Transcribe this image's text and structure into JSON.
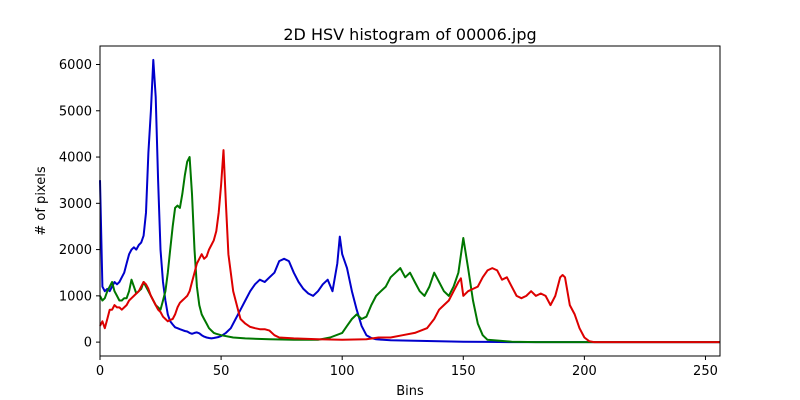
{
  "chart_data": {
    "type": "line",
    "title": "2D HSV histogram of 00006.jpg",
    "xlabel": "Bins",
    "ylabel": "# of pixels",
    "xlim": [
      0,
      256
    ],
    "ylim": [
      -300,
      6400
    ],
    "xticks": [
      0,
      50,
      100,
      150,
      200,
      250
    ],
    "yticks": [
      0,
      1000,
      2000,
      3000,
      4000,
      5000,
      6000
    ],
    "grid": false,
    "series": [
      {
        "color": "#0000cc",
        "points": [
          [
            0,
            3500
          ],
          [
            1,
            1200
          ],
          [
            2,
            1100
          ],
          [
            3,
            1150
          ],
          [
            4,
            1100
          ],
          [
            5,
            1200
          ],
          [
            6,
            1300
          ],
          [
            7,
            1250
          ],
          [
            8,
            1300
          ],
          [
            9,
            1400
          ],
          [
            10,
            1500
          ],
          [
            11,
            1700
          ],
          [
            12,
            1900
          ],
          [
            13,
            2000
          ],
          [
            14,
            2050
          ],
          [
            15,
            2000
          ],
          [
            16,
            2100
          ],
          [
            17,
            2150
          ],
          [
            18,
            2300
          ],
          [
            19,
            2800
          ],
          [
            20,
            4100
          ],
          [
            21,
            5000
          ],
          [
            22,
            6100
          ],
          [
            23,
            5300
          ],
          [
            24,
            3500
          ],
          [
            25,
            2000
          ],
          [
            26,
            1300
          ],
          [
            27,
            900
          ],
          [
            28,
            600
          ],
          [
            29,
            450
          ],
          [
            30,
            380
          ],
          [
            31,
            320
          ],
          [
            32,
            300
          ],
          [
            33,
            280
          ],
          [
            34,
            260
          ],
          [
            35,
            240
          ],
          [
            36,
            230
          ],
          [
            37,
            200
          ],
          [
            38,
            180
          ],
          [
            39,
            200
          ],
          [
            40,
            210
          ],
          [
            41,
            190
          ],
          [
            42,
            150
          ],
          [
            43,
            120
          ],
          [
            44,
            100
          ],
          [
            45,
            90
          ],
          [
            46,
            80
          ],
          [
            47,
            90
          ],
          [
            48,
            100
          ],
          [
            49,
            110
          ],
          [
            50,
            130
          ],
          [
            52,
            200
          ],
          [
            54,
            300
          ],
          [
            56,
            500
          ],
          [
            58,
            700
          ],
          [
            60,
            900
          ],
          [
            62,
            1100
          ],
          [
            64,
            1250
          ],
          [
            66,
            1350
          ],
          [
            68,
            1300
          ],
          [
            70,
            1400
          ],
          [
            72,
            1500
          ],
          [
            74,
            1750
          ],
          [
            76,
            1800
          ],
          [
            78,
            1750
          ],
          [
            80,
            1500
          ],
          [
            82,
            1300
          ],
          [
            84,
            1150
          ],
          [
            86,
            1050
          ],
          [
            88,
            1000
          ],
          [
            90,
            1100
          ],
          [
            92,
            1250
          ],
          [
            94,
            1350
          ],
          [
            96,
            1100
          ],
          [
            98,
            1700
          ],
          [
            99,
            2280
          ],
          [
            100,
            1900
          ],
          [
            102,
            1600
          ],
          [
            104,
            1100
          ],
          [
            106,
            700
          ],
          [
            108,
            350
          ],
          [
            110,
            150
          ],
          [
            112,
            90
          ],
          [
            114,
            60
          ],
          [
            120,
            40
          ],
          [
            130,
            30
          ],
          [
            140,
            20
          ],
          [
            150,
            10
          ],
          [
            160,
            5
          ],
          [
            170,
            0
          ],
          [
            200,
            0
          ],
          [
            256,
            0
          ]
        ]
      },
      {
        "color": "#007700",
        "points": [
          [
            0,
            1000
          ],
          [
            1,
            900
          ],
          [
            2,
            950
          ],
          [
            3,
            1100
          ],
          [
            4,
            1200
          ],
          [
            5,
            1300
          ],
          [
            6,
            1100
          ],
          [
            7,
            1000
          ],
          [
            8,
            900
          ],
          [
            9,
            900
          ],
          [
            10,
            950
          ],
          [
            11,
            950
          ],
          [
            12,
            1100
          ],
          [
            13,
            1350
          ],
          [
            14,
            1200
          ],
          [
            15,
            1050
          ],
          [
            16,
            1100
          ],
          [
            17,
            1150
          ],
          [
            18,
            1300
          ],
          [
            19,
            1200
          ],
          [
            20,
            1100
          ],
          [
            21,
            1000
          ],
          [
            22,
            900
          ],
          [
            23,
            800
          ],
          [
            24,
            750
          ],
          [
            25,
            700
          ],
          [
            26,
            900
          ],
          [
            27,
            1100
          ],
          [
            28,
            1500
          ],
          [
            29,
            2000
          ],
          [
            30,
            2500
          ],
          [
            31,
            2900
          ],
          [
            32,
            2950
          ],
          [
            33,
            2900
          ],
          [
            34,
            3200
          ],
          [
            35,
            3600
          ],
          [
            36,
            3900
          ],
          [
            37,
            4000
          ],
          [
            38,
            3200
          ],
          [
            39,
            2000
          ],
          [
            40,
            1200
          ],
          [
            41,
            800
          ],
          [
            42,
            600
          ],
          [
            43,
            500
          ],
          [
            44,
            400
          ],
          [
            45,
            300
          ],
          [
            46,
            250
          ],
          [
            47,
            200
          ],
          [
            48,
            180
          ],
          [
            50,
            150
          ],
          [
            55,
            100
          ],
          [
            60,
            80
          ],
          [
            70,
            60
          ],
          [
            80,
            50
          ],
          [
            90,
            50
          ],
          [
            95,
            100
          ],
          [
            100,
            200
          ],
          [
            102,
            350
          ],
          [
            104,
            500
          ],
          [
            106,
            600
          ],
          [
            108,
            500
          ],
          [
            110,
            550
          ],
          [
            112,
            800
          ],
          [
            114,
            1000
          ],
          [
            116,
            1100
          ],
          [
            118,
            1200
          ],
          [
            120,
            1400
          ],
          [
            122,
            1500
          ],
          [
            124,
            1600
          ],
          [
            126,
            1400
          ],
          [
            128,
            1500
          ],
          [
            130,
            1300
          ],
          [
            132,
            1100
          ],
          [
            134,
            1000
          ],
          [
            136,
            1200
          ],
          [
            138,
            1500
          ],
          [
            140,
            1300
          ],
          [
            142,
            1100
          ],
          [
            144,
            1000
          ],
          [
            146,
            1200
          ],
          [
            148,
            1500
          ],
          [
            150,
            2250
          ],
          [
            152,
            1600
          ],
          [
            154,
            900
          ],
          [
            156,
            400
          ],
          [
            158,
            150
          ],
          [
            160,
            50
          ],
          [
            170,
            10
          ],
          [
            180,
            0
          ],
          [
            200,
            0
          ],
          [
            256,
            0
          ]
        ]
      },
      {
        "color": "#dd0000",
        "points": [
          [
            0,
            350
          ],
          [
            1,
            450
          ],
          [
            2,
            300
          ],
          [
            3,
            500
          ],
          [
            4,
            700
          ],
          [
            5,
            700
          ],
          [
            6,
            800
          ],
          [
            7,
            750
          ],
          [
            8,
            750
          ],
          [
            9,
            700
          ],
          [
            10,
            750
          ],
          [
            11,
            800
          ],
          [
            12,
            900
          ],
          [
            13,
            950
          ],
          [
            14,
            1000
          ],
          [
            15,
            1050
          ],
          [
            16,
            1100
          ],
          [
            17,
            1200
          ],
          [
            18,
            1300
          ],
          [
            19,
            1250
          ],
          [
            20,
            1150
          ],
          [
            21,
            1000
          ],
          [
            22,
            900
          ],
          [
            23,
            800
          ],
          [
            24,
            700
          ],
          [
            25,
            650
          ],
          [
            26,
            550
          ],
          [
            27,
            500
          ],
          [
            28,
            450
          ],
          [
            29,
            480
          ],
          [
            30,
            500
          ],
          [
            31,
            600
          ],
          [
            32,
            750
          ],
          [
            33,
            850
          ],
          [
            34,
            900
          ],
          [
            35,
            950
          ],
          [
            36,
            1000
          ],
          [
            37,
            1100
          ],
          [
            38,
            1300
          ],
          [
            39,
            1500
          ],
          [
            40,
            1700
          ],
          [
            41,
            1800
          ],
          [
            42,
            1900
          ],
          [
            43,
            1800
          ],
          [
            44,
            1850
          ],
          [
            45,
            2000
          ],
          [
            46,
            2100
          ],
          [
            47,
            2200
          ],
          [
            48,
            2400
          ],
          [
            49,
            2800
          ],
          [
            50,
            3400
          ],
          [
            51,
            4150
          ],
          [
            52,
            3000
          ],
          [
            53,
            1900
          ],
          [
            54,
            1500
          ],
          [
            55,
            1100
          ],
          [
            56,
            900
          ],
          [
            57,
            700
          ],
          [
            58,
            500
          ],
          [
            60,
            400
          ],
          [
            62,
            330
          ],
          [
            64,
            300
          ],
          [
            66,
            280
          ],
          [
            68,
            280
          ],
          [
            70,
            250
          ],
          [
            72,
            150
          ],
          [
            74,
            100
          ],
          [
            80,
            80
          ],
          [
            90,
            60
          ],
          [
            100,
            50
          ],
          [
            110,
            60
          ],
          [
            115,
            100
          ],
          [
            120,
            100
          ],
          [
            125,
            150
          ],
          [
            130,
            200
          ],
          [
            135,
            300
          ],
          [
            138,
            500
          ],
          [
            140,
            700
          ],
          [
            142,
            800
          ],
          [
            144,
            900
          ],
          [
            146,
            1100
          ],
          [
            148,
            1300
          ],
          [
            149,
            1380
          ],
          [
            150,
            1000
          ],
          [
            152,
            1100
          ],
          [
            154,
            1150
          ],
          [
            156,
            1200
          ],
          [
            158,
            1400
          ],
          [
            160,
            1550
          ],
          [
            162,
            1600
          ],
          [
            164,
            1550
          ],
          [
            166,
            1350
          ],
          [
            168,
            1400
          ],
          [
            170,
            1200
          ],
          [
            172,
            1000
          ],
          [
            174,
            950
          ],
          [
            176,
            1000
          ],
          [
            178,
            1100
          ],
          [
            180,
            1000
          ],
          [
            182,
            1050
          ],
          [
            184,
            1000
          ],
          [
            186,
            800
          ],
          [
            188,
            1000
          ],
          [
            190,
            1400
          ],
          [
            191,
            1450
          ],
          [
            192,
            1400
          ],
          [
            194,
            800
          ],
          [
            196,
            600
          ],
          [
            198,
            300
          ],
          [
            200,
            100
          ],
          [
            202,
            20
          ],
          [
            204,
            0
          ],
          [
            256,
            0
          ]
        ]
      }
    ]
  }
}
